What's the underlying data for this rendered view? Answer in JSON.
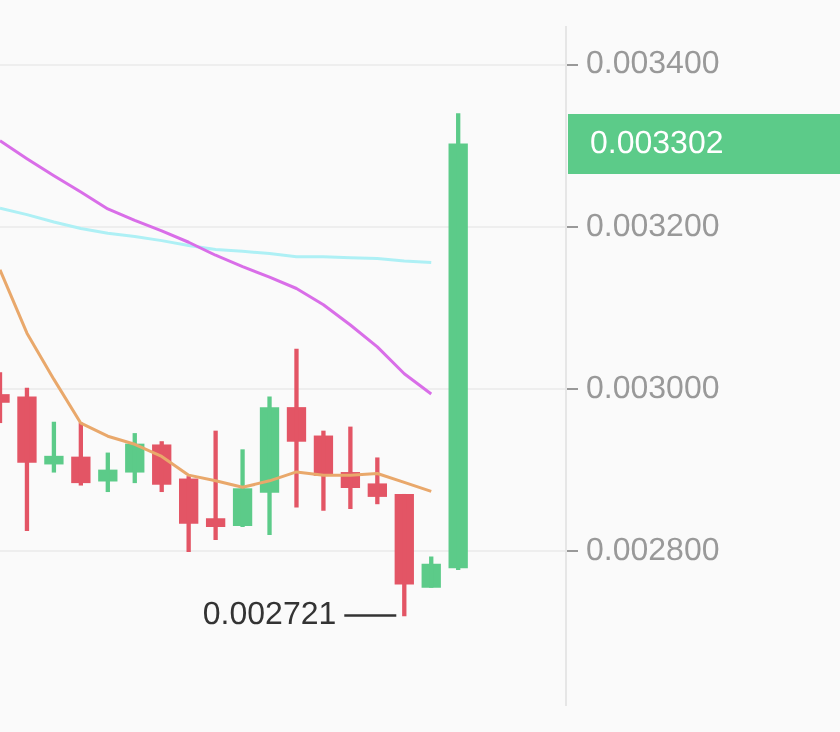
{
  "chart_data": {
    "type": "candlestick",
    "categories": [
      null,
      null,
      null,
      null,
      null,
      null,
      null,
      null,
      null,
      null,
      null,
      null,
      null,
      null,
      null,
      null,
      null,
      null,
      null,
      null,
      null,
      null
    ],
    "ohlc": [
      [
        0.002993,
        0.00302,
        0.002959,
        0.002984
      ],
      [
        0.00299,
        0.003001,
        0.002826,
        0.00291
      ],
      [
        0.002908,
        0.002959,
        0.002898,
        0.002917
      ],
      [
        0.002916,
        0.002958,
        0.002882,
        0.002885
      ],
      [
        0.002887,
        0.002921,
        0.002874,
        0.0029
      ],
      [
        0.002898,
        0.002945,
        0.002885,
        0.002932
      ],
      [
        0.002931,
        0.002935,
        0.002874,
        0.002883
      ],
      [
        0.002889,
        0.002892,
        0.0028,
        0.002835
      ],
      [
        0.00284,
        0.002948,
        0.002815,
        0.002831
      ],
      [
        0.002832,
        0.002925,
        0.002831,
        0.002877
      ],
      [
        0.002873,
        0.00299,
        0.002821,
        0.002977
      ],
      [
        0.002977,
        0.003049,
        0.002855,
        0.002936
      ],
      [
        0.002942,
        0.002948,
        0.002851,
        0.002894
      ],
      [
        0.002897,
        0.002953,
        0.002853,
        0.002879
      ],
      [
        0.002883,
        0.002915,
        0.002859,
        0.002868
      ],
      [
        0.00287,
        0.00287,
        0.002721,
        0.00276
      ],
      [
        0.002756,
        0.002793,
        0.002756,
        0.002784
      ],
      [
        0.00278,
        0.003339,
        0.002778,
        0.003302
      ],
      null,
      null,
      null,
      null
    ],
    "colors": [
      "#e35565",
      "#e35565",
      "#5ccb89",
      "#e35565",
      "#5ccb89",
      "#5ccb89",
      "#e35565",
      "#e35565",
      "#e35565",
      "#5ccb89",
      "#5ccb89",
      "#e35565",
      "#e35565",
      "#e35565",
      "#e35565",
      "#e35565",
      "#5ccb89",
      "#5ccb89",
      null,
      null,
      null,
      null
    ],
    "series": [
      {
        "type": "line",
        "color": "#e9a86b",
        "values": [
          0.003147,
          0.003069,
          0.003012,
          0.002958,
          0.002942,
          0.002932,
          0.002917,
          0.002894,
          0.002887,
          0.002879,
          0.002887,
          0.002898,
          0.002894,
          0.002894,
          0.002896,
          0.002885,
          0.002874,
          null,
          null,
          null,
          null,
          null
        ]
      },
      {
        "type": "line",
        "color": "#d96ee8",
        "values": [
          0.003306,
          0.003284,
          0.003263,
          0.003243,
          0.003222,
          0.003208,
          0.003195,
          0.003181,
          0.003165,
          0.003151,
          0.003138,
          0.003124,
          0.003104,
          0.003079,
          0.003052,
          0.003019,
          0.002994,
          null,
          null,
          null,
          null,
          null
        ]
      },
      {
        "type": "line",
        "color": "#aef0f5",
        "values": [
          0.003223,
          0.003215,
          0.003206,
          0.003198,
          0.003192,
          0.003188,
          0.003183,
          0.003177,
          0.003172,
          0.00317,
          0.003167,
          0.003163,
          0.003163,
          0.003162,
          0.003161,
          0.003158,
          0.003156,
          null,
          null,
          null,
          null,
          null
        ]
      }
    ],
    "ylim": [
      0.002611,
      0.003446
    ],
    "yticks": [
      {
        "value": 0.0028,
        "label": "0.002800"
      },
      {
        "value": 0.003,
        "label": "0.003000"
      },
      {
        "value": 0.0032,
        "label": "0.003200"
      },
      {
        "value": 0.0034,
        "label": "0.003400"
      }
    ],
    "tick_labels": "y",
    "grid": "y",
    "annotations": [
      "0.003302",
      "0.002721"
    ]
  }
}
